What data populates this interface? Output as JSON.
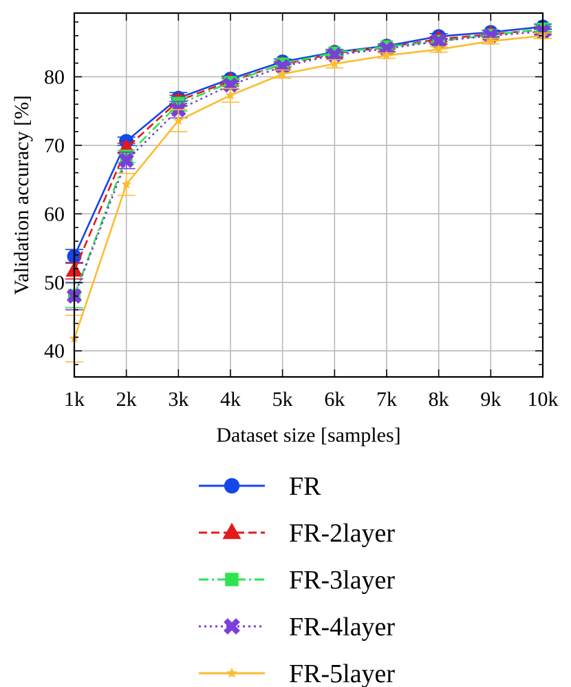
{
  "chart_data": {
    "type": "line",
    "title": "",
    "xlabel": "Dataset size [samples]",
    "ylabel": "Validation accuracy [%]",
    "x": [
      1,
      2,
      3,
      4,
      5,
      6,
      7,
      8,
      9,
      10
    ],
    "x_tick_labels": [
      "1k",
      "2k",
      "3k",
      "4k",
      "5k",
      "6k",
      "7k",
      "8k",
      "9k",
      "10k"
    ],
    "xlim": [
      1,
      10
    ],
    "y_ticks": [
      40,
      50,
      60,
      70,
      80
    ],
    "ylim": [
      36.2,
      89.3
    ],
    "grid": true,
    "legend_position": "below plot",
    "series": [
      {
        "name": "FR",
        "color": "#1446e8",
        "linestyle": "solid",
        "marker": "circle",
        "values": [
          53.8,
          70.6,
          76.9,
          79.7,
          82.2,
          83.6,
          84.5,
          85.9,
          86.5,
          87.3
        ],
        "errors": [
          1.0,
          0.6,
          0.8,
          0.4,
          0.4,
          0.4,
          0.3,
          0.4,
          0.3,
          0.4
        ]
      },
      {
        "name": "FR-2layer",
        "color": "#e31a1c",
        "linestyle": "dashed",
        "marker": "triangle",
        "values": [
          51.7,
          69.6,
          76.5,
          79.4,
          81.8,
          83.4,
          84.3,
          85.5,
          86.2,
          86.9
        ],
        "errors": [
          1.2,
          0.7,
          0.8,
          0.4,
          0.4,
          0.4,
          0.3,
          0.4,
          0.3,
          0.4
        ]
      },
      {
        "name": "FR-3layer",
        "color": "#2ee54d",
        "linestyle": "dashdot",
        "marker": "square",
        "values": [
          48.1,
          68.4,
          76.0,
          79.2,
          81.9,
          83.5,
          84.4,
          85.2,
          86.1,
          87.0
        ],
        "errors": [
          1.8,
          0.9,
          1.0,
          0.5,
          0.4,
          0.4,
          0.3,
          0.4,
          0.3,
          0.4
        ]
      },
      {
        "name": "FR-4layer",
        "color": "#7b3fd9",
        "linestyle": "dotted",
        "marker": "x",
        "values": [
          48.0,
          67.8,
          75.2,
          78.8,
          81.5,
          83.2,
          84.1,
          85.2,
          86.0,
          86.6
        ],
        "errors": [
          2.0,
          1.2,
          1.2,
          0.6,
          0.5,
          0.4,
          0.4,
          0.4,
          0.3,
          0.4
        ]
      },
      {
        "name": "FR-5layer",
        "color": "#fbbc2e",
        "linestyle": "solid",
        "marker": "star",
        "values": [
          41.8,
          64.3,
          73.6,
          77.3,
          80.4,
          81.9,
          83.1,
          84.0,
          85.2,
          86.0
        ],
        "errors": [
          3.4,
          1.6,
          1.6,
          1.0,
          0.6,
          0.6,
          0.4,
          0.4,
          0.4,
          0.4
        ]
      }
    ]
  }
}
